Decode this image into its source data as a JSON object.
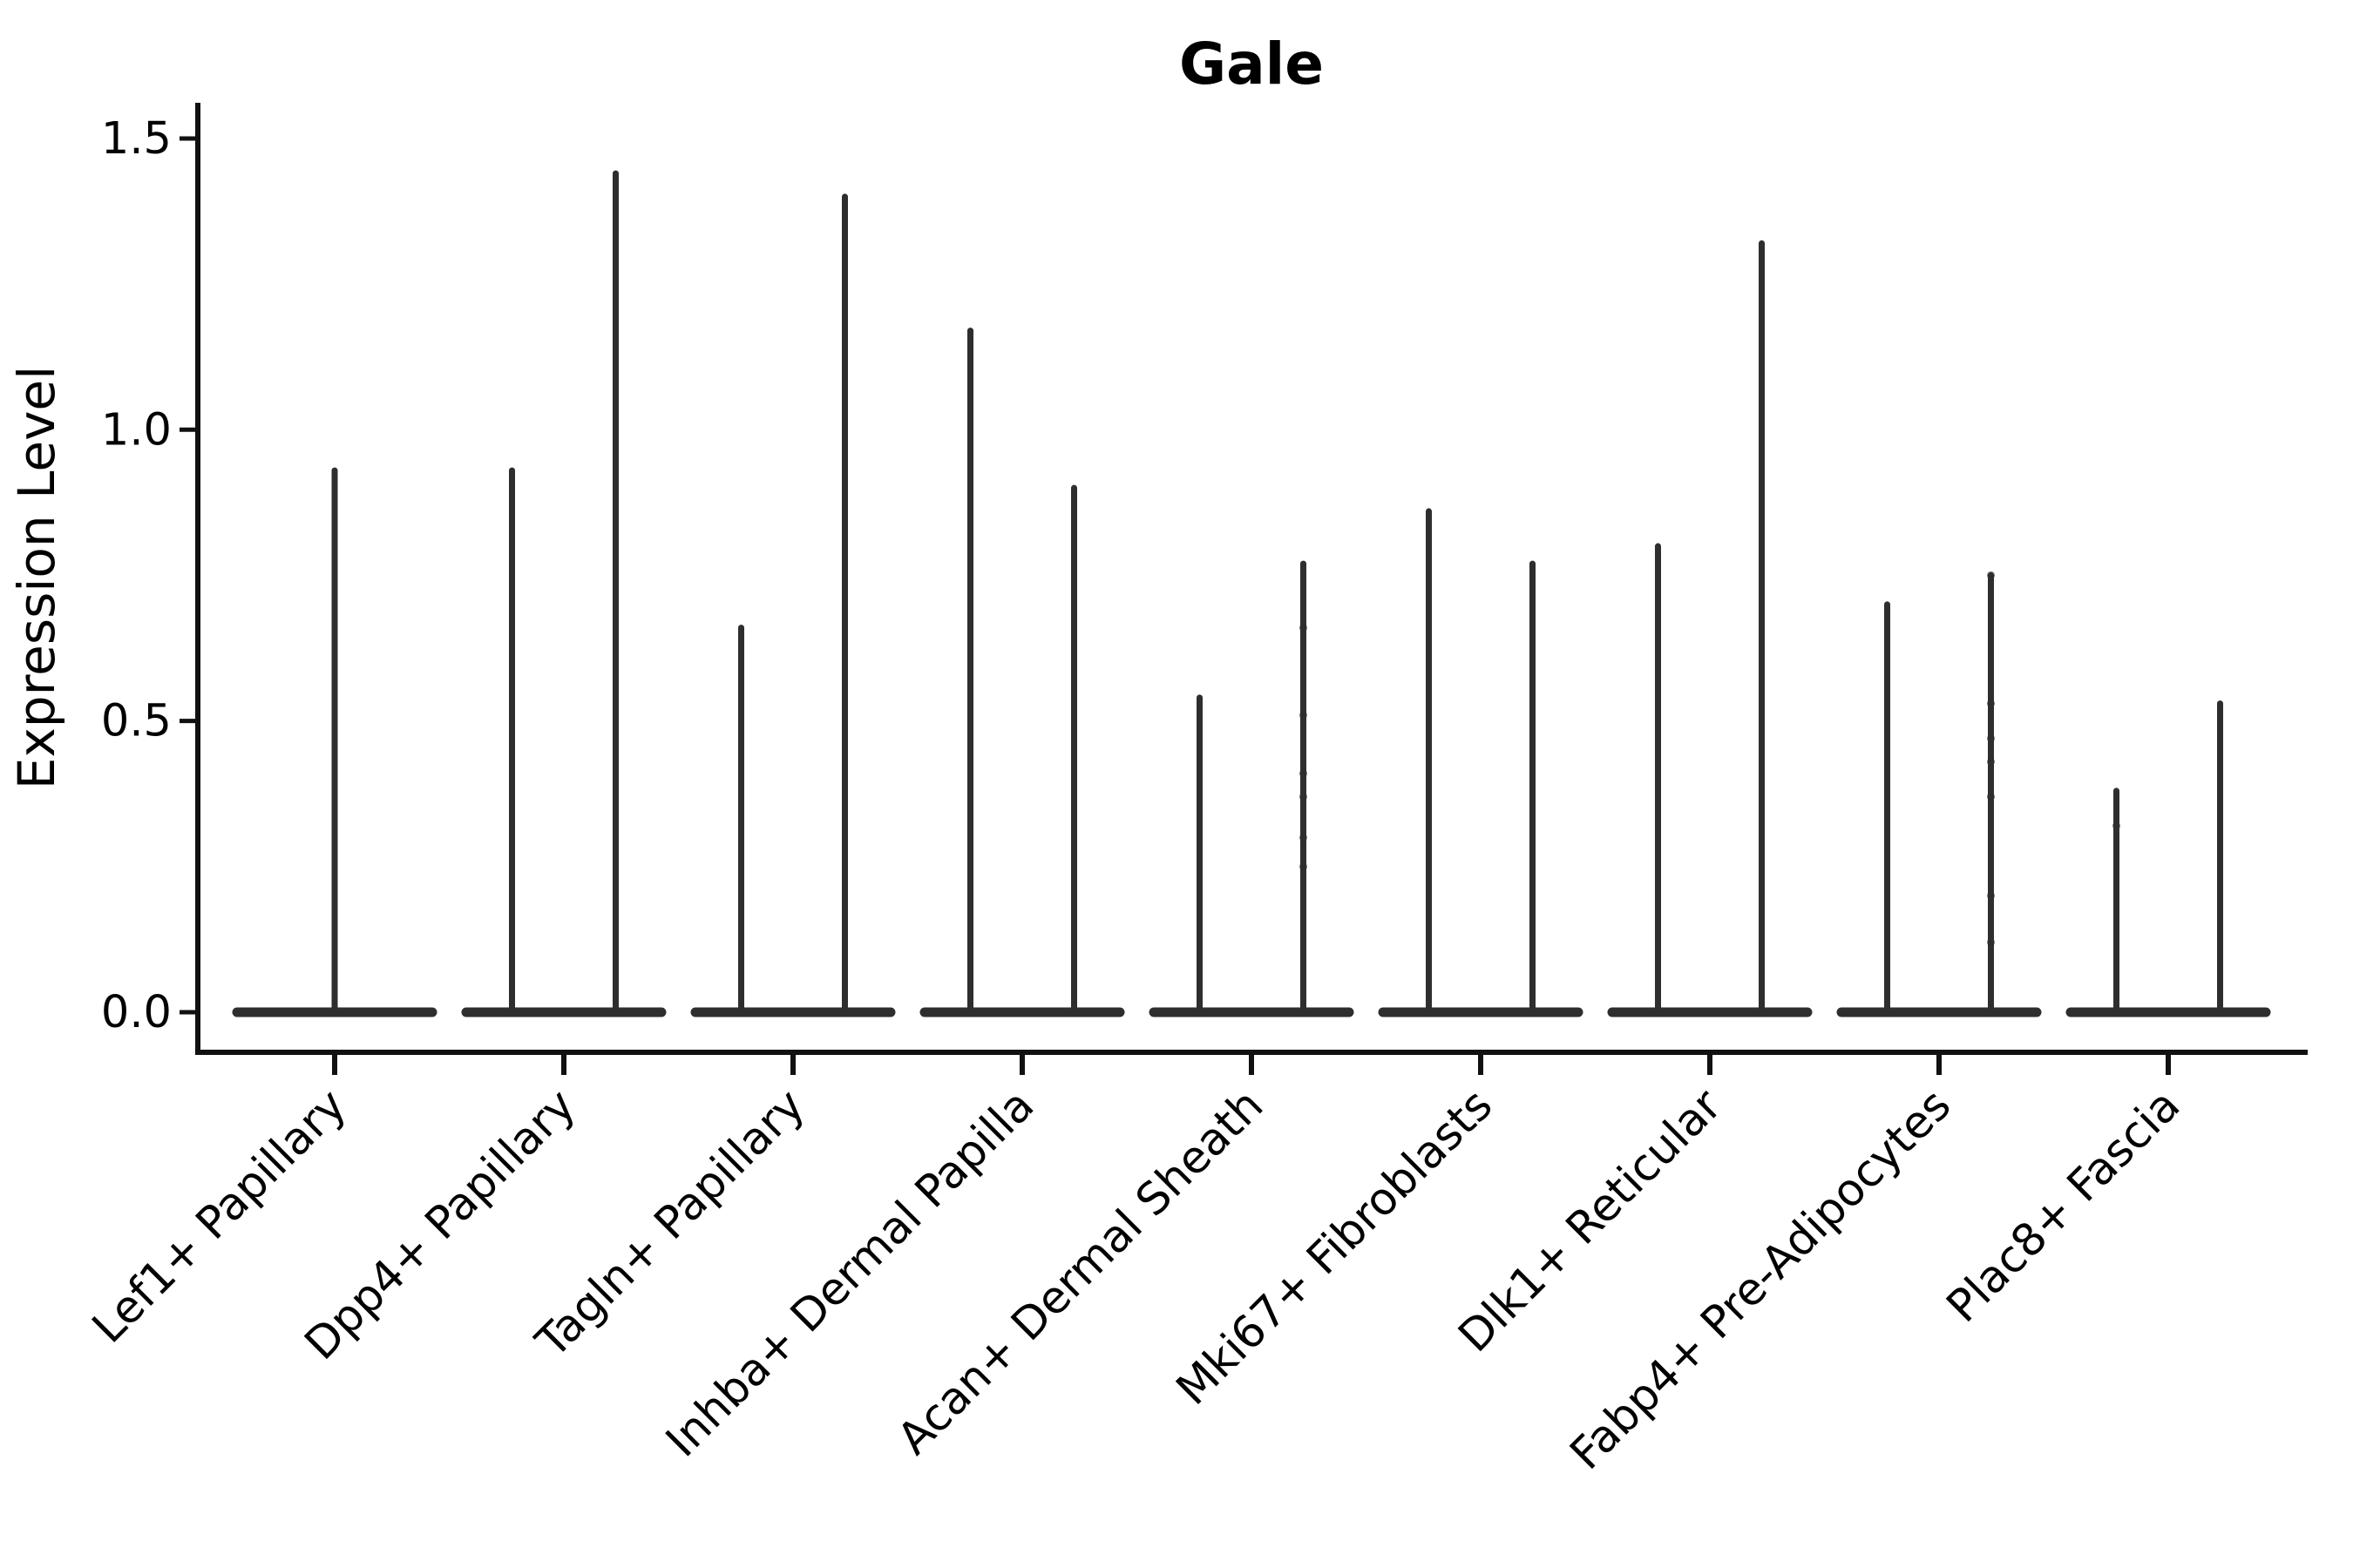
{
  "chart_data": {
    "type": "violin",
    "title": "Gale",
    "ylabel": "Expression Level",
    "xlabel": "",
    "y_tick_labels": [
      "0.0",
      "0.5",
      "1.0",
      "1.5"
    ],
    "ylim": [
      -0.07,
      1.56
    ],
    "grid": false,
    "legend": "none",
    "colors": {
      "violin": "#2e2e2e",
      "axis": "#111111",
      "text": "#000000"
    },
    "note": "Each category shows two thin split violins (flat density at 0 with a spike to max expression); Lef1+ Papillary has a single violin. Dots are individual cell expression points.",
    "categories": [
      {
        "label": "Lef1+ Papillary",
        "violins": [
          {
            "max": 0.93,
            "points": []
          }
        ]
      },
      {
        "label": "Dpp4+ Papillary",
        "violins": [
          {
            "max": 0.93,
            "points": []
          },
          {
            "max": 1.44,
            "points": []
          }
        ]
      },
      {
        "label": "Tagln+ Papillary",
        "violins": [
          {
            "max": 0.66,
            "points": []
          },
          {
            "max": 1.4,
            "points": []
          }
        ]
      },
      {
        "label": "Inhba+ Dermal Papilla",
        "violins": [
          {
            "max": 1.17,
            "points": []
          },
          {
            "max": 0.9,
            "points": []
          }
        ]
      },
      {
        "label": "Acan+ Dermal Sheath",
        "violins": [
          {
            "max": 0.54,
            "points": []
          },
          {
            "max": 0.77,
            "points": [
              0.66,
              0.51,
              0.41,
              0.37,
              0.3,
              0.25
            ]
          }
        ]
      },
      {
        "label": "Mki67+ Fibroblasts",
        "violins": [
          {
            "max": 0.86,
            "points": []
          },
          {
            "max": 0.77,
            "points": []
          }
        ]
      },
      {
        "label": "Dlk1+ Reticular",
        "violins": [
          {
            "max": 0.8,
            "points": []
          },
          {
            "max": 1.32,
            "points": []
          }
        ]
      },
      {
        "label": "Fabp4+ Pre-Adipocytes",
        "violins": [
          {
            "max": 0.7,
            "points": []
          },
          {
            "max": 0.75,
            "points": [
              0.75,
              0.53,
              0.47,
              0.43,
              0.37,
              0.2,
              0.12
            ]
          }
        ]
      },
      {
        "label": "Plac8+ Fascia",
        "violins": [
          {
            "max": 0.38,
            "points": [
              0.32
            ]
          },
          {
            "max": 0.53,
            "points": []
          }
        ]
      }
    ]
  }
}
